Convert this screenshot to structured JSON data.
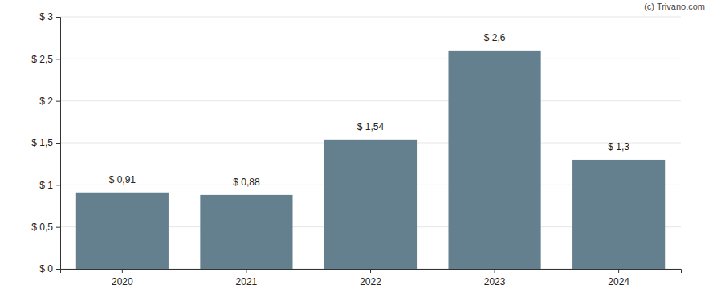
{
  "chart_data": {
    "type": "bar",
    "annotations": [
      "(c) Trivano.com"
    ],
    "categories": [
      "2020",
      "2021",
      "2022",
      "2023",
      "2024"
    ],
    "values": [
      0.91,
      0.88,
      1.54,
      2.6,
      1.3
    ],
    "value_labels": [
      "$ 0,91",
      "$ 0,88",
      "$ 1,54",
      "$ 2,6",
      "$ 1,3"
    ],
    "data_labels": true,
    "color": "#64808f",
    "ylim": [
      0,
      3
    ],
    "yticks": [
      {
        "value": 0,
        "label": "$ 0"
      },
      {
        "value": 0.5,
        "label": "$ 0,5"
      },
      {
        "value": 1,
        "label": "$ 1"
      },
      {
        "value": 1.5,
        "label": "$ 1,5"
      },
      {
        "value": 2,
        "label": "$ 2"
      },
      {
        "value": 2.5,
        "label": "$ 2,5"
      },
      {
        "value": 3,
        "label": "$ 3"
      }
    ],
    "grid": true
  }
}
